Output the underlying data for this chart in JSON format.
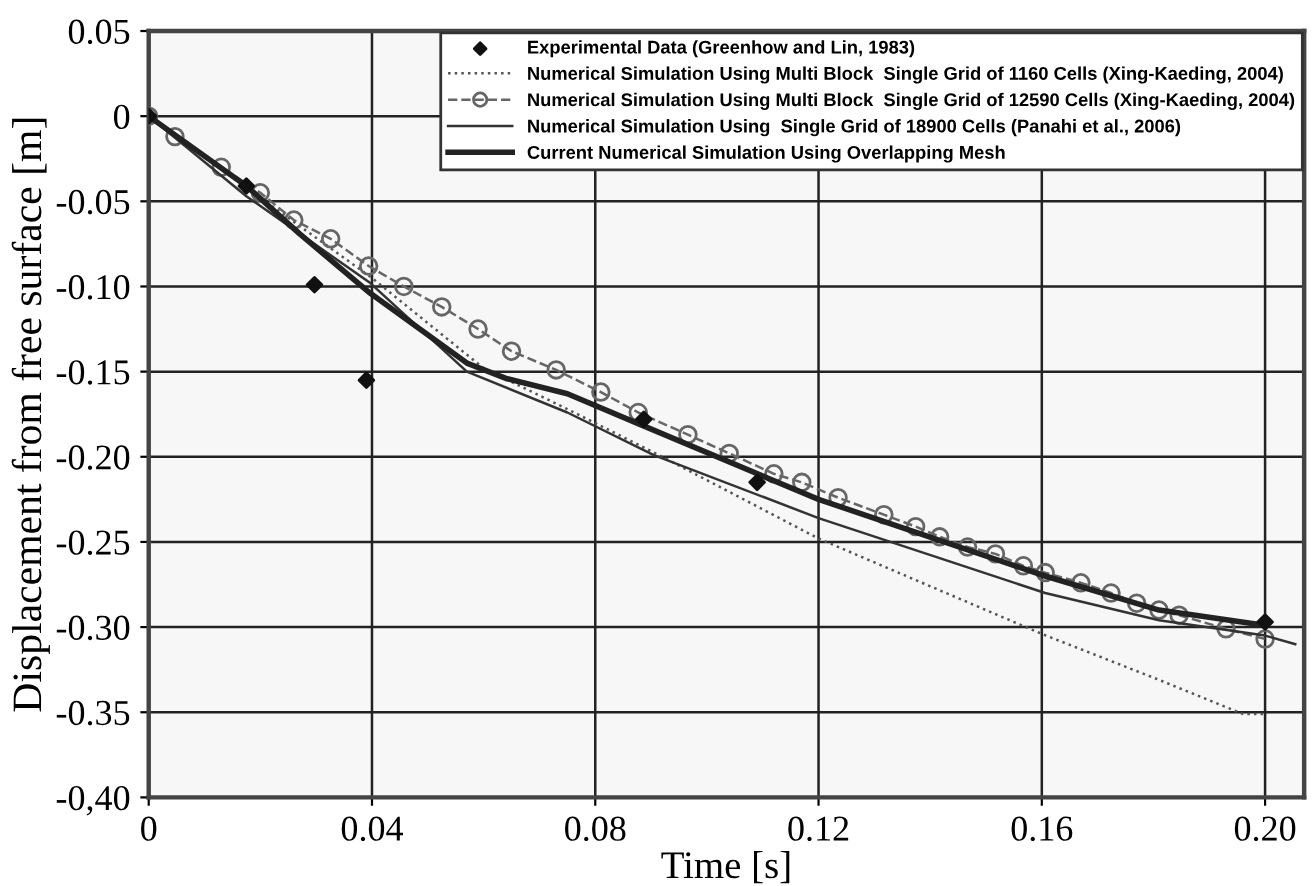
{
  "chart_data": {
    "type": "line",
    "xlabel": "Time [s]",
    "ylabel": "Displacement from free surface [m]",
    "xlim": [
      0,
      0.207
    ],
    "ylim": [
      -0.4,
      0.05
    ],
    "xticks": [
      0,
      0.04,
      0.08,
      0.12,
      0.16,
      {
        "value": 0.2,
        "label": "0.20"
      }
    ],
    "yticks": [
      0.05,
      0,
      -0.05,
      {
        "value": -0.1,
        "label": "-0.10"
      },
      -0.15,
      {
        "value": -0.2,
        "label": "-0.20"
      },
      -0.25,
      {
        "value": -0.3,
        "label": "-0.30"
      },
      -0.35,
      {
        "value": -0.4,
        "label": "-0,40"
      }
    ],
    "grid": true,
    "legend": "top right",
    "series": [
      {
        "name": "Experimental Data (Greenhow and Lin, 1983)",
        "type": "scatter",
        "marker": "diamond",
        "color": "#111111",
        "x": [
          0,
          0.0175,
          0.0297,
          0.039,
          0.0887,
          0.109,
          0.2
        ],
        "values": [
          0,
          -0.041,
          -0.099,
          -0.155,
          -0.178,
          -0.215,
          -0.297
        ]
      },
      {
        "name": "Numerical Simulation Using Multi Block  Single Grid of 1160 Cells (Xing-Kaeding, 2004)",
        "line_style": "dotted",
        "marker": "none",
        "color": "#555555",
        "x": [
          0,
          0.0175,
          0.04,
          0.06,
          0.075,
          0.092,
          0.12,
          0.16,
          0.181,
          0.196,
          0.2
        ],
        "values": [
          0,
          -0.042,
          -0.095,
          -0.148,
          -0.172,
          -0.2,
          -0.248,
          -0.304,
          -0.331,
          -0.351,
          -0.351
        ]
      },
      {
        "name": "Numerical Simulation Using Multi Block  Single Grid of 12590 Cells (Xing-Kaeding, 2004)",
        "line_style": "dashed",
        "marker": "circle",
        "color": "#666666",
        "x": [
          0,
          0.0047,
          0.013,
          0.02,
          0.026,
          0.0326,
          0.0394,
          0.0457,
          0.0525,
          0.059,
          0.065,
          0.073,
          0.081,
          0.0877,
          0.0966,
          0.104,
          0.112,
          0.117,
          0.1235,
          0.1317,
          0.1374,
          0.1417,
          0.1467,
          0.1517,
          0.1567,
          0.1606,
          0.167,
          0.1724,
          0.177,
          0.181,
          0.1846,
          0.193,
          0.2
        ],
        "values": [
          0,
          -0.012,
          -0.03,
          -0.045,
          -0.061,
          -0.072,
          -0.088,
          -0.1,
          -0.112,
          -0.125,
          -0.138,
          -0.149,
          -0.162,
          -0.174,
          -0.187,
          -0.198,
          -0.21,
          -0.215,
          -0.224,
          -0.234,
          -0.241,
          -0.247,
          -0.253,
          -0.257,
          -0.264,
          -0.268,
          -0.274,
          -0.28,
          -0.286,
          -0.29,
          -0.293,
          -0.301,
          -0.307
        ]
      },
      {
        "name": "Numerical Simulation Using  Single Grid of 18900 Cells (Panahi et al., 2006)",
        "line_style": "solid",
        "marker": "none",
        "color": "#333333",
        "x": [
          0,
          0.0175,
          0.0397,
          0.057,
          0.075,
          0.0905,
          0.12,
          0.1606,
          0.181,
          0.2,
          0.2054
        ],
        "values": [
          0,
          -0.047,
          -0.098,
          -0.15,
          -0.174,
          -0.199,
          -0.236,
          -0.28,
          -0.296,
          -0.305,
          -0.31
        ]
      },
      {
        "name": "Current Numerical Simulation Using Overlapping Mesh",
        "line_style": "solid",
        "marker": "none",
        "color": "#222222",
        "x": [
          0,
          0.0175,
          0.027,
          0.0397,
          0.057,
          0.064,
          0.075,
          0.088,
          0.12,
          0.1606,
          0.181,
          0.2
        ],
        "values": [
          0,
          -0.041,
          -0.069,
          -0.104,
          -0.145,
          -0.154,
          -0.163,
          -0.181,
          -0.225,
          -0.27,
          -0.29,
          -0.299
        ]
      }
    ]
  }
}
